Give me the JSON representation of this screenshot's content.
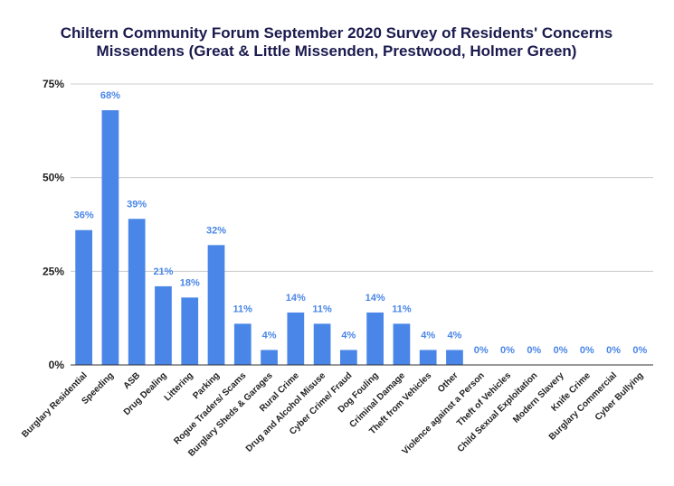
{
  "chart_data": {
    "type": "bar",
    "title": "Chiltern Community Forum September 2020 Survey of Residents' Concerns",
    "subtitle": "Missendens (Great & Little Missenden, Prestwood, Holmer Green)",
    "xlabel": "",
    "ylabel": "",
    "ylim": [
      0,
      75
    ],
    "yticks": [
      {
        "value": 0,
        "label": "0%"
      },
      {
        "value": 25,
        "label": "25%"
      },
      {
        "value": 50,
        "label": "50%"
      },
      {
        "value": 75,
        "label": "75%"
      }
    ],
    "grid": true,
    "legend": "none",
    "bar_color": "#4a86e8",
    "categories": [
      "Burglary Residential",
      "Speeding",
      "ASB",
      "Drug Dealing",
      "Littering",
      "Parking",
      "Rogue Traders/ Scams",
      "Burglary Sheds & Garages",
      "Rural Crime",
      "Drug and Alcohol Misuse",
      "Cyber Crime/ Fraud",
      "Dog Fouling",
      "Criminal Damage",
      "Theft from Vehicles",
      "Other",
      "Violence against a Person",
      "Theft of Vehicles",
      "Child Sexual Exploitation",
      "Modern Slavery",
      "Knife Crime",
      "Burglary Commercial",
      "Cyber Bullying"
    ],
    "values": [
      36,
      68,
      39,
      21,
      18,
      32,
      11,
      4,
      14,
      11,
      4,
      14,
      11,
      4,
      4,
      0,
      0,
      0,
      0,
      0,
      0,
      0
    ],
    "data_labels": [
      "36%",
      "68%",
      "39%",
      "21%",
      "18%",
      "32%",
      "11%",
      "4%",
      "14%",
      "11%",
      "4%",
      "14%",
      "11%",
      "4%",
      "4%",
      "0%",
      "0%",
      "0%",
      "0%",
      "0%",
      "0%",
      "0%"
    ]
  }
}
